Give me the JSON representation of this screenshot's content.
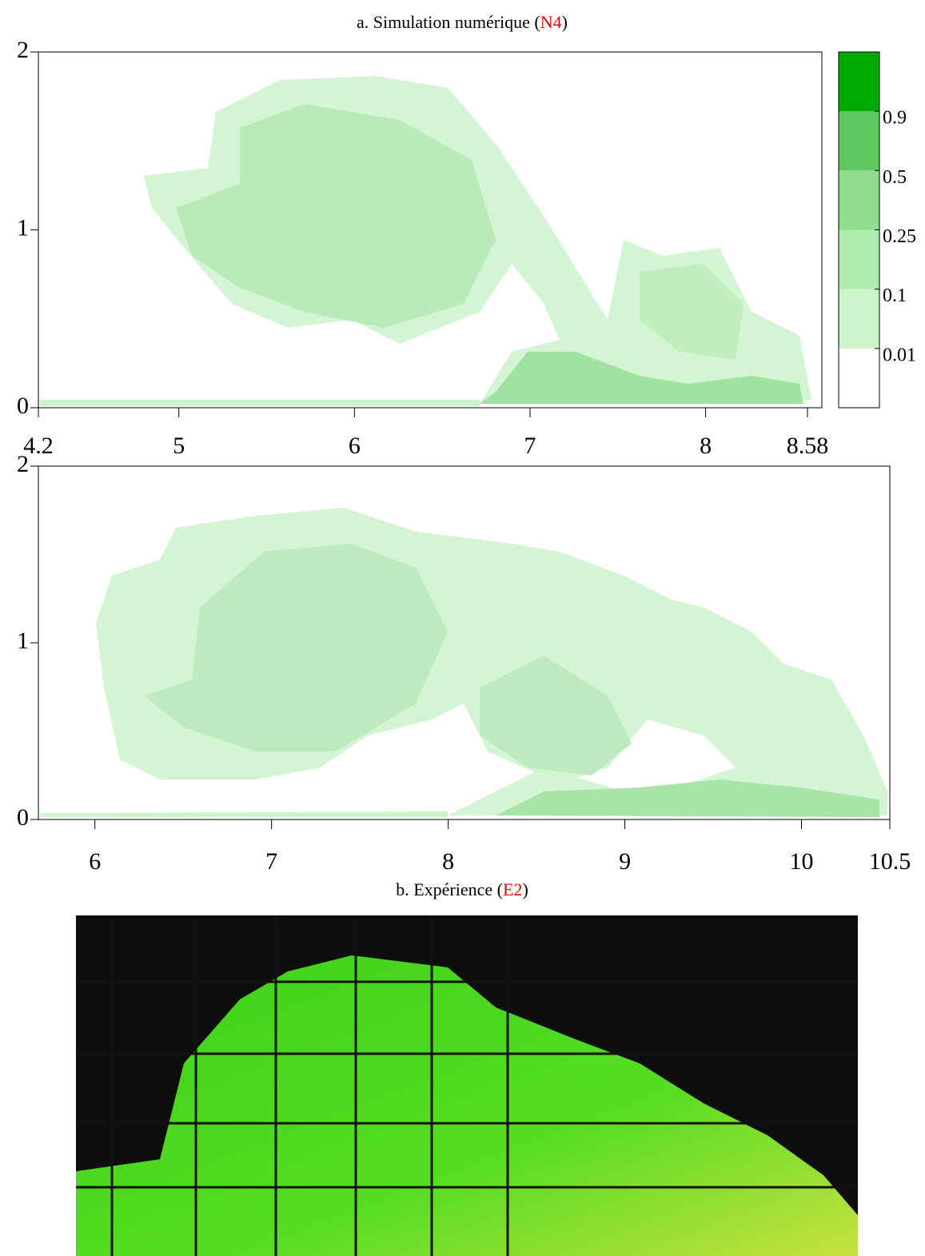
{
  "panels": [
    {
      "caption": [
        "a. Simulation numérique (",
        "N4",
        ")"
      ],
      "xlim": [
        4.2,
        8.58
      ],
      "xticks": [
        4.2,
        5,
        6,
        7,
        8,
        8.58
      ],
      "ylim": [
        0,
        2
      ],
      "yticks": [
        0,
        1,
        2
      ],
      "colorbar": {
        "levels": [
          0.01,
          0.1,
          0.25,
          0.5,
          0.9
        ],
        "colors": [
          "#ffffff",
          "#ccf5cc",
          "#b0ebb0",
          "#90dd90",
          "#60c860",
          "#00aa00"
        ]
      }
    },
    {
      "caption": [
        "b. Expérience (",
        "E2",
        ")"
      ],
      "xlim": [
        5.68,
        10.5
      ],
      "xticks": [
        6,
        7,
        8,
        9,
        10,
        10.5
      ],
      "ylim": [
        0,
        2
      ],
      "yticks": [
        0,
        1,
        2
      ]
    }
  ]
}
